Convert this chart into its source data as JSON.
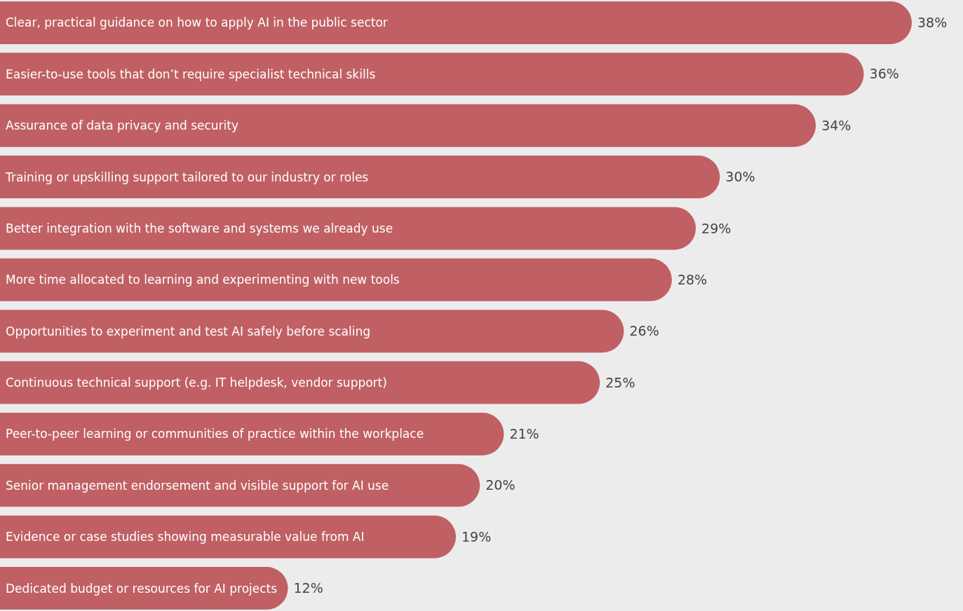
{
  "chart_data": {
    "type": "bar",
    "orientation": "horizontal",
    "color": "#c06064",
    "categories": [
      "Clear, practical guidance on how to apply AI in the public sector",
      "Easier-to-use tools that don’t require specialist technical skills",
      "Assurance of data privacy and security",
      "Training or upskilling support tailored to our industry or roles",
      "Better integration with the software and systems we already use",
      "More time allocated to learning and experimenting with new tools",
      "Opportunities to experiment and test AI safely before scaling",
      "Continuous technical support (e.g. IT helpdesk, vendor support)",
      "Peer-to-peer learning or communities of practice within the workplace",
      "Senior management endorsement and visible support for AI use",
      "Evidence or case studies showing measurable value from AI",
      "Dedicated budget or resources for AI projects"
    ],
    "values": [
      38,
      36,
      34,
      30,
      29,
      28,
      26,
      25,
      21,
      20,
      19,
      12
    ],
    "value_labels": [
      "38%",
      "36%",
      "34%",
      "30%",
      "29%",
      "28%",
      "26%",
      "25%",
      "21%",
      "20%",
      "19%",
      "12%"
    ]
  }
}
